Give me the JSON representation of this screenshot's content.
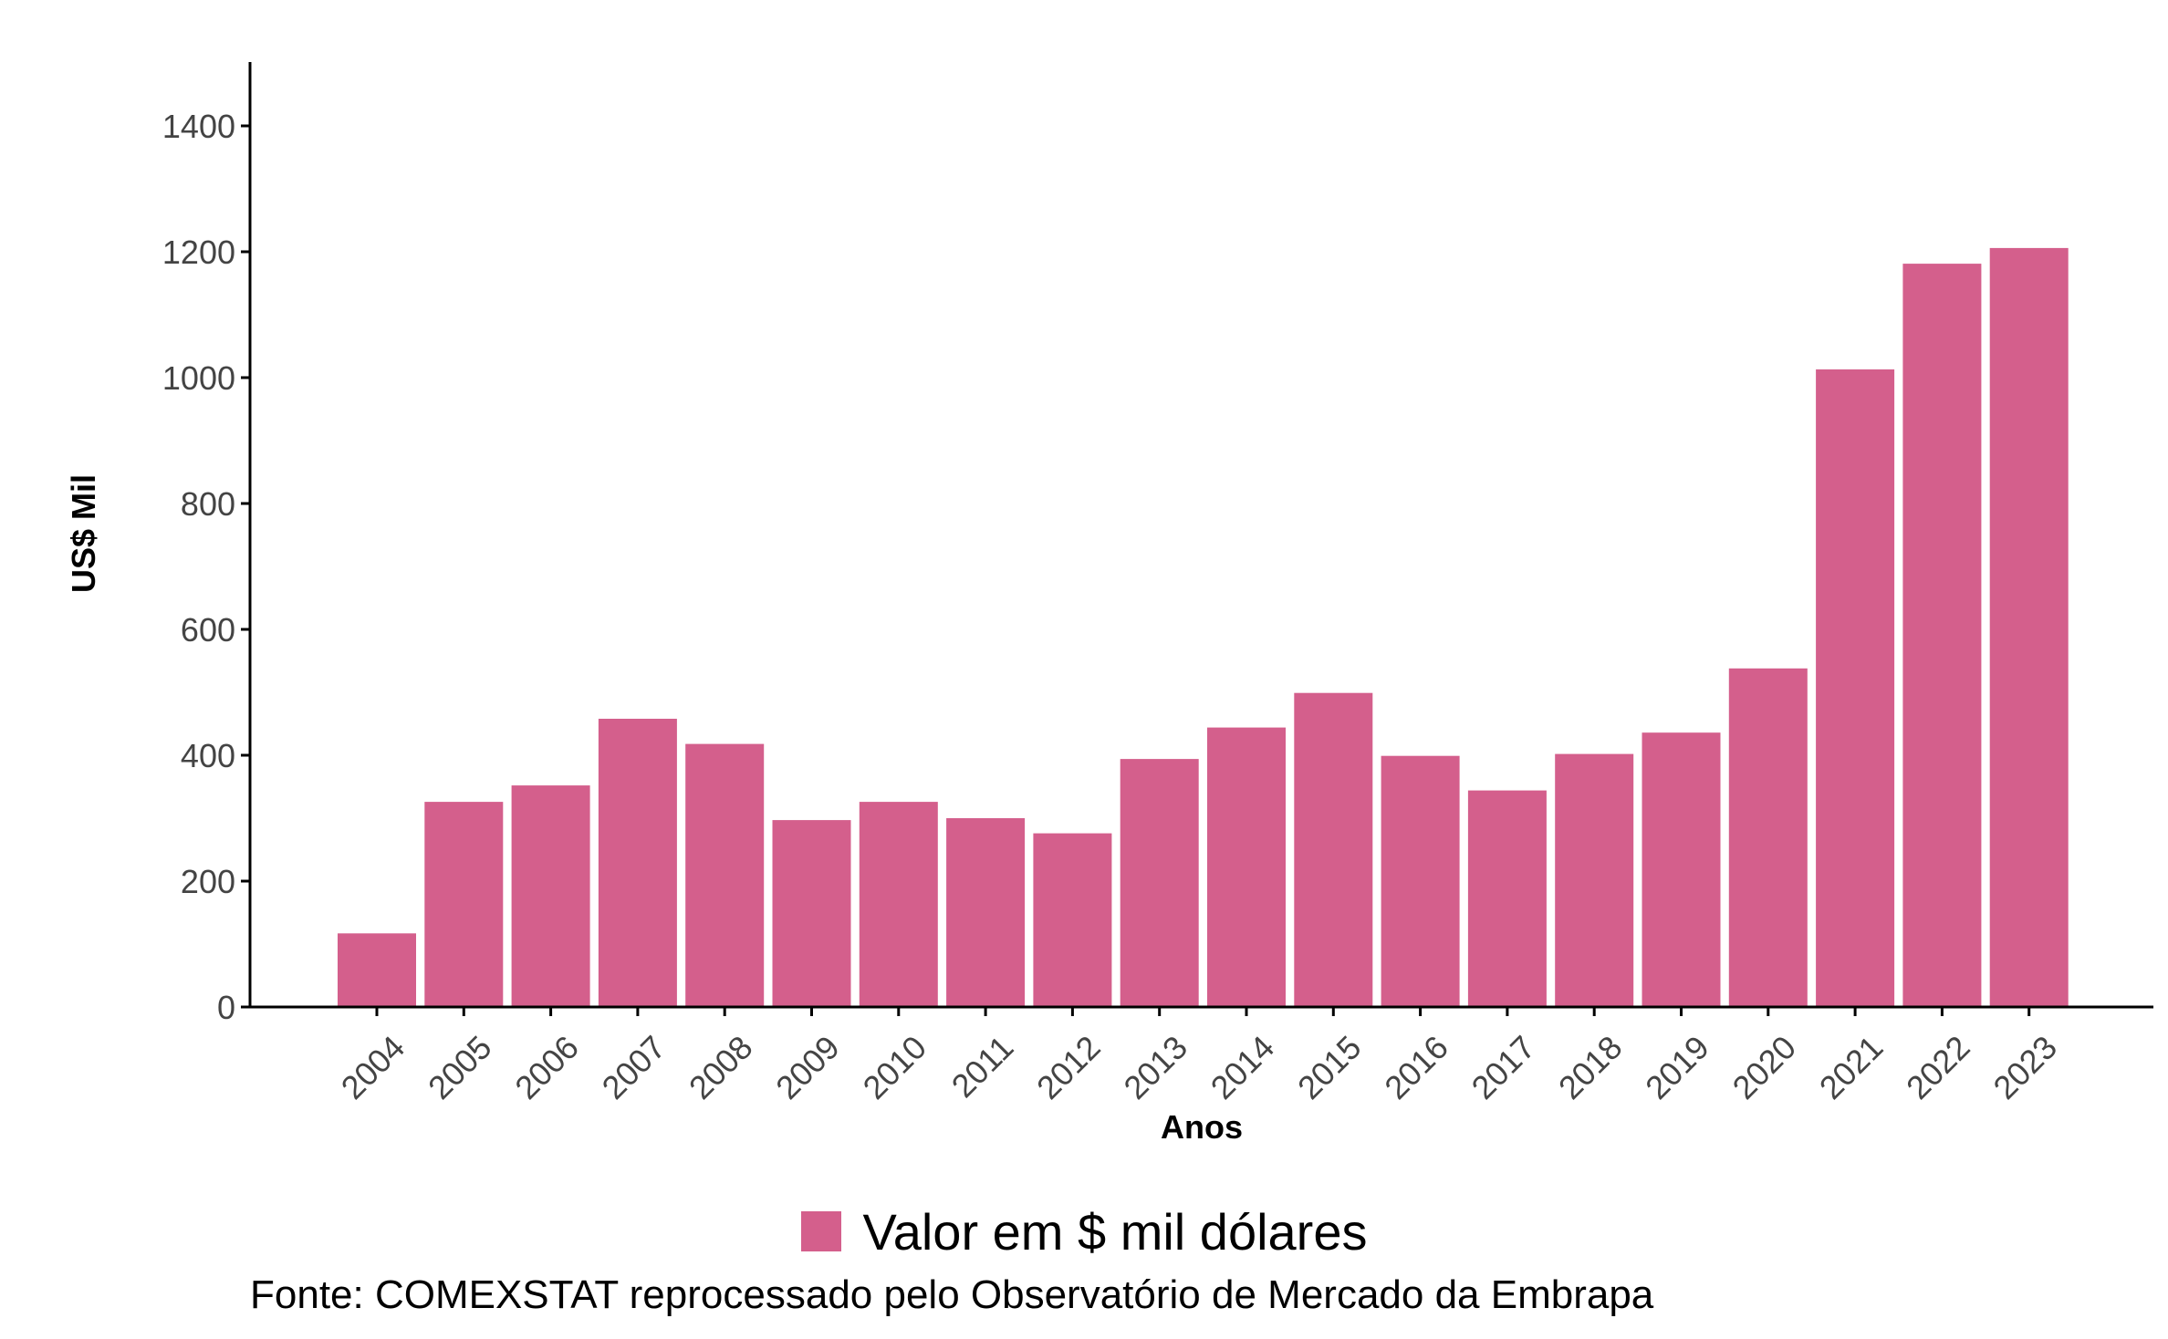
{
  "chart_data": {
    "type": "bar",
    "categories": [
      "2004",
      "2005",
      "2006",
      "2007",
      "2008",
      "2009",
      "2010",
      "2011",
      "2012",
      "2013",
      "2014",
      "2015",
      "2016",
      "2017",
      "2018",
      "2019",
      "2020",
      "2021",
      "2022",
      "2023"
    ],
    "series": [
      {
        "name": "Valor em $ mil dólares",
        "values": [
          117,
          326,
          352,
          458,
          418,
          297,
          326,
          300,
          276,
          394,
          444,
          499,
          399,
          344,
          402,
          436,
          538,
          1013,
          1181,
          1206
        ]
      }
    ],
    "xlabel": "Anos",
    "ylabel": "US$ Mil",
    "ylim": [
      0,
      1500
    ],
    "yticks": [
      0,
      200,
      400,
      600,
      800,
      1000,
      1200,
      1400
    ],
    "grid": false,
    "legend_position": "bottom",
    "bar_color": "#d45f8c",
    "source": "Fonte: COMEXSTAT reprocessado pelo Observatório de Mercado da Embrapa"
  }
}
